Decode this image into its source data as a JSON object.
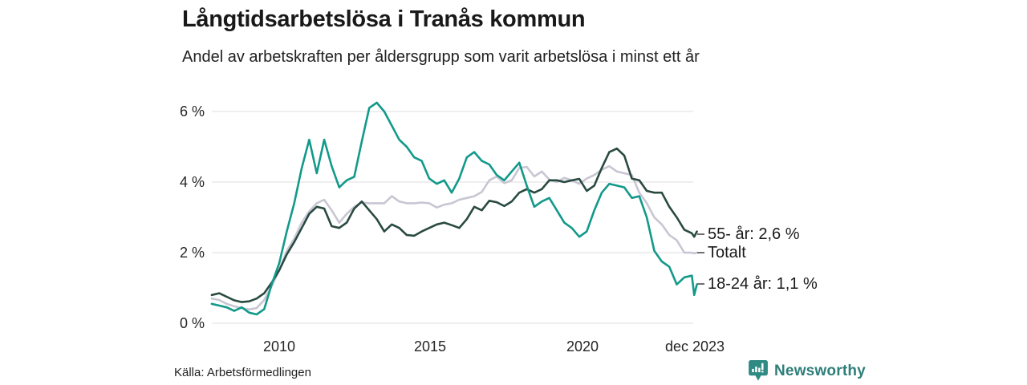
{
  "header": {
    "title": "Långtidsarbetslösa i Tranås kommun",
    "subtitle": "Andel av arbetskraften per åldersgrupp som varit arbetslösa i minst ett år"
  },
  "footer": {
    "source": "Källa: Arbetsförmedlingen",
    "brand": {
      "name": "Newsworthy",
      "icon": "newsworthy-speech-bubble-bar-chart-icon",
      "text_color": "#2e7e7a",
      "icon_color": "#2f8a83"
    }
  },
  "colors": {
    "age_18_24": "#12998a",
    "age_55_plus": "#294a41",
    "total": "#c9c6d4",
    "gridline": "#e5e4e8"
  },
  "chart_data": {
    "type": "line",
    "title": "Långtidsarbetslösa i Tranås kommun",
    "subtitle": "Andel av arbetskraften per åldersgrupp som varit arbetslösa i minst ett år",
    "xlabel": "",
    "ylabel": "",
    "unit": "% av arbetskraften",
    "xlim": [
      2007.7,
      2023.95
    ],
    "ylim": [
      0,
      6.6
    ],
    "grid": "horizontal",
    "legend_position": "right-end-labels",
    "y_ticks": [
      {
        "label": "0 %",
        "value": 0
      },
      {
        "label": "2 %",
        "value": 2
      },
      {
        "label": "4 %",
        "value": 4
      },
      {
        "label": "6 %",
        "value": 6
      }
    ],
    "x_ticks": [
      {
        "label": "2010",
        "value": 2010
      },
      {
        "label": "2015",
        "value": 2015
      },
      {
        "label": "2020",
        "value": 2020
      },
      {
        "label": "dec 2023",
        "value": 2023.92
      }
    ],
    "x": [
      2007.75,
      2008,
      2008.25,
      2008.5,
      2008.75,
      2009,
      2009.25,
      2009.5,
      2009.75,
      2010,
      2010.25,
      2010.5,
      2010.75,
      2011,
      2011.25,
      2011.5,
      2011.75,
      2012,
      2012.25,
      2012.5,
      2012.75,
      2013,
      2013.25,
      2013.5,
      2013.75,
      2014,
      2014.25,
      2014.5,
      2014.75,
      2015,
      2015.25,
      2015.5,
      2015.75,
      2016,
      2016.25,
      2016.5,
      2016.75,
      2017,
      2017.25,
      2017.5,
      2017.75,
      2018,
      2018.25,
      2018.5,
      2018.75,
      2019,
      2019.25,
      2019.5,
      2019.75,
      2020,
      2020.25,
      2020.5,
      2020.75,
      2021,
      2021.25,
      2021.5,
      2021.75,
      2022,
      2022.25,
      2022.5,
      2022.75,
      2023,
      2023.25,
      2023.5,
      2023.75,
      2023.83,
      2023.92
    ],
    "series": [
      {
        "id": "totalt",
        "name": "Totalt",
        "end_label": "Totalt",
        "end_value": 2.0,
        "color": "#c9c6d4",
        "values": [
          0.7,
          0.66,
          0.55,
          0.48,
          0.43,
          0.39,
          0.43,
          0.66,
          1.05,
          1.5,
          2.05,
          2.4,
          2.85,
          3.17,
          3.4,
          3.5,
          3.2,
          2.85,
          3.1,
          3.3,
          3.42,
          3.4,
          3.4,
          3.4,
          3.6,
          3.45,
          3.4,
          3.4,
          3.42,
          3.4,
          3.28,
          3.36,
          3.4,
          3.5,
          3.55,
          3.6,
          3.72,
          4.05,
          4.16,
          3.97,
          4.05,
          4.4,
          4.43,
          4.16,
          4.3,
          4.07,
          4.0,
          4.12,
          4.05,
          3.95,
          4.1,
          4.2,
          4.35,
          4.45,
          4.3,
          4.25,
          4.2,
          3.7,
          3.4,
          3.0,
          2.8,
          2.5,
          2.35,
          2.0,
          2.0,
          1.98,
          2.0
        ]
      },
      {
        "id": "55",
        "name": "55- år",
        "end_label": "55- år: 2,6 %",
        "end_value": 2.6,
        "color": "#294a41",
        "values": [
          0.8,
          0.85,
          0.75,
          0.65,
          0.6,
          0.62,
          0.7,
          0.85,
          1.15,
          1.5,
          1.95,
          2.3,
          2.7,
          3.1,
          3.3,
          3.25,
          2.75,
          2.7,
          2.85,
          3.25,
          3.45,
          3.2,
          2.95,
          2.6,
          2.8,
          2.7,
          2.5,
          2.48,
          2.6,
          2.7,
          2.8,
          2.85,
          2.78,
          2.7,
          2.95,
          3.3,
          3.2,
          3.47,
          3.43,
          3.32,
          3.45,
          3.7,
          3.8,
          3.7,
          3.8,
          4.05,
          4.05,
          4.0,
          4.05,
          4.09,
          3.75,
          3.9,
          4.4,
          4.85,
          4.95,
          4.75,
          4.1,
          4.05,
          3.75,
          3.7,
          3.7,
          3.3,
          3.0,
          2.65,
          2.55,
          2.45,
          2.6
        ]
      },
      {
        "id": "1824",
        "name": "18-24 år",
        "end_label": "18-24 år: 1,1 %",
        "end_value": 1.1,
        "color": "#12998a",
        "values": [
          0.55,
          0.5,
          0.45,
          0.35,
          0.45,
          0.3,
          0.25,
          0.4,
          1.1,
          1.7,
          2.6,
          3.4,
          4.4,
          5.2,
          4.25,
          5.2,
          4.45,
          3.85,
          4.05,
          4.15,
          5.15,
          6.1,
          6.25,
          6.0,
          5.6,
          5.2,
          5.0,
          4.7,
          4.6,
          4.1,
          3.95,
          4.05,
          3.7,
          4.1,
          4.7,
          4.85,
          4.6,
          4.5,
          4.2,
          4.05,
          4.3,
          4.55,
          3.9,
          3.3,
          3.45,
          3.55,
          3.2,
          2.85,
          2.7,
          2.45,
          2.6,
          3.2,
          3.7,
          3.95,
          3.9,
          3.85,
          3.55,
          3.6,
          3.0,
          2.05,
          1.75,
          1.6,
          1.1,
          1.3,
          1.35,
          0.8,
          1.1
        ]
      }
    ]
  }
}
